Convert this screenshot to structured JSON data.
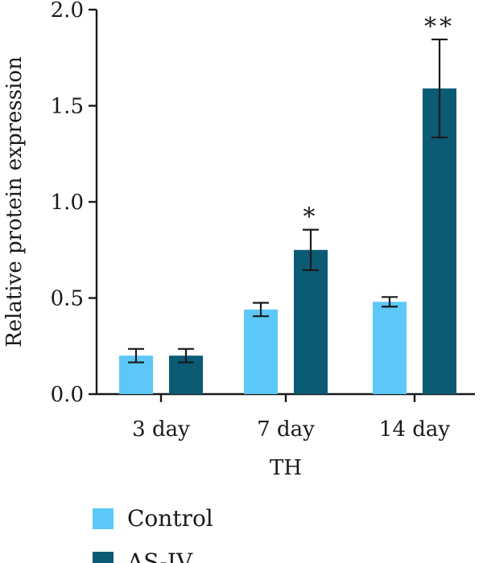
{
  "chart_data": {
    "type": "bar",
    "xlabel": "TH",
    "ylabel": "Relative protein expression",
    "categories": [
      "3 day",
      "7 day",
      "14 day"
    ],
    "ylim": [
      0,
      2.0
    ],
    "yticks": [
      "0.0",
      "0.5",
      "1.0",
      "1.5",
      "2.0"
    ],
    "grid": false,
    "legend_position": "bottom-left",
    "series": [
      {
        "name": "Control",
        "color": "#5bc8f8",
        "values": [
          0.2,
          0.44,
          0.48
        ],
        "errors": [
          0.035,
          0.035,
          0.025
        ],
        "significance": [
          "",
          "",
          ""
        ]
      },
      {
        "name": "AS-IV",
        "color": "#0b5b75",
        "values": [
          0.2,
          0.75,
          1.59
        ],
        "errors": [
          0.035,
          0.105,
          0.255
        ],
        "significance": [
          "",
          "*",
          "**"
        ]
      }
    ]
  }
}
